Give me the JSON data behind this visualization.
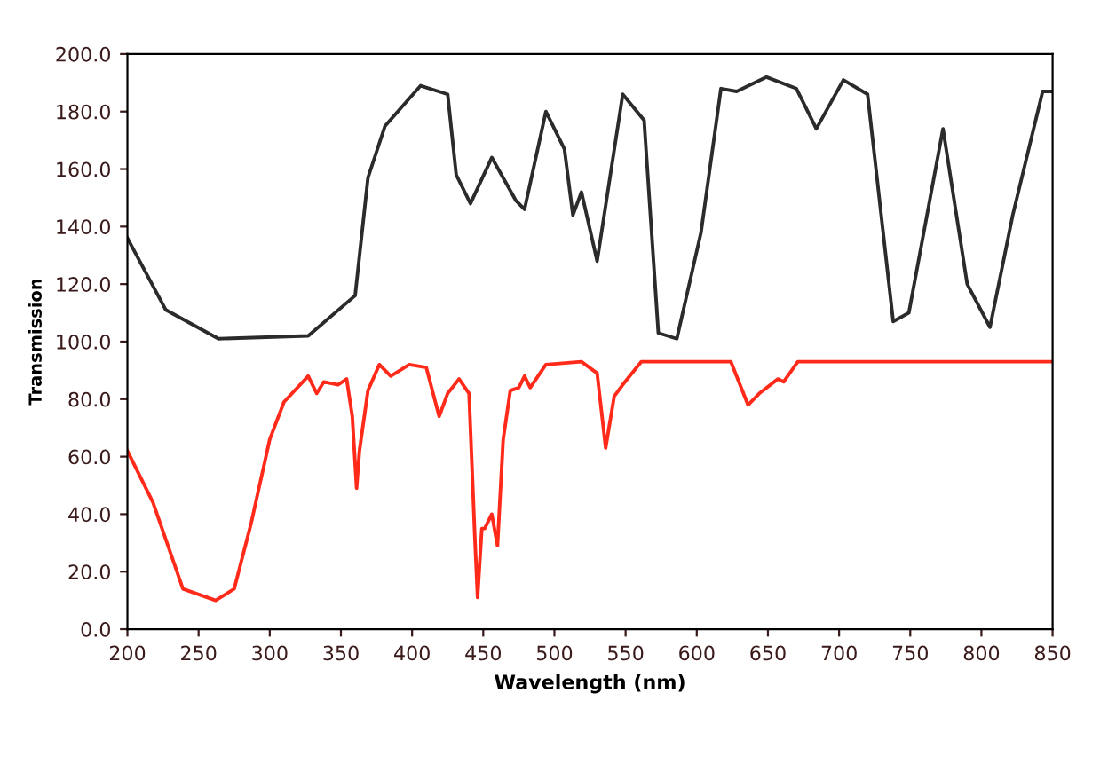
{
  "chart_data": {
    "type": "line",
    "xlabel": "Wavelength (nm)",
    "ylabel": "Transmission",
    "xlim": [
      200,
      850
    ],
    "xticks": [
      200,
      250,
      300,
      350,
      400,
      450,
      500,
      550,
      600,
      650,
      700,
      750,
      800,
      850
    ],
    "ylim": [
      0,
      200
    ],
    "yticks": [
      {
        "value": 0,
        "label": "0.0"
      },
      {
        "value": 20,
        "label": "20.0"
      },
      {
        "value": 40,
        "label": "40.0"
      },
      {
        "value": 60,
        "label": "60.0"
      },
      {
        "value": 80,
        "label": "80.0"
      },
      {
        "value": 100,
        "label": "100.0"
      },
      {
        "value": 120,
        "label": "120.0"
      },
      {
        "value": 140,
        "label": "140.0"
      },
      {
        "value": 160,
        "label": "160.0"
      },
      {
        "value": 180,
        "label": "180.0"
      },
      {
        "value": 200,
        "label": "200.0"
      }
    ],
    "grid": false,
    "legend": false,
    "marker": "none",
    "line_style": "solid",
    "series": [
      {
        "color": "#2b2b2b",
        "x": [
          200,
          227,
          264,
          327,
          360,
          369,
          381,
          406,
          425,
          431,
          441,
          456,
          473,
          479,
          494,
          507,
          513,
          519,
          530,
          548,
          563,
          573,
          586,
          603,
          617,
          628,
          649,
          670,
          684,
          703,
          720,
          738,
          749,
          773,
          790,
          806,
          822,
          843,
          850
        ],
        "values": [
          136,
          111,
          101,
          102,
          116,
          157,
          175,
          189,
          186,
          158,
          148,
          164,
          149,
          146,
          180,
          167,
          144,
          152,
          128,
          186,
          177,
          103,
          101,
          138,
          188,
          187,
          192,
          188,
          174,
          191,
          186,
          107,
          110,
          174,
          120,
          105,
          144,
          187,
          187
        ]
      },
      {
        "color": "#ff2a1a",
        "x": [
          200,
          218,
          239,
          262,
          275,
          287,
          300,
          310,
          327,
          333,
          338,
          348,
          354,
          358,
          361,
          363,
          369,
          377,
          385,
          398,
          410,
          419,
          425,
          433,
          440,
          444,
          446,
          449,
          451,
          456,
          460,
          464,
          469,
          475,
          479,
          483,
          494,
          519,
          530,
          536,
          542,
          548,
          561,
          607,
          624,
          636,
          644,
          657,
          661,
          671,
          732,
          816,
          850
        ],
        "values": [
          62,
          44,
          14,
          10,
          14,
          37,
          66,
          79,
          88,
          82,
          86,
          85,
          87,
          74,
          49,
          62,
          83,
          92,
          88,
          92,
          91,
          74,
          82,
          87,
          82,
          33,
          11,
          35,
          35,
          40,
          29,
          66,
          83,
          84,
          88,
          84,
          92,
          93,
          89,
          63,
          81,
          85,
          93,
          93,
          93,
          78,
          82,
          87,
          86,
          93,
          93,
          93,
          93
        ]
      }
    ]
  }
}
